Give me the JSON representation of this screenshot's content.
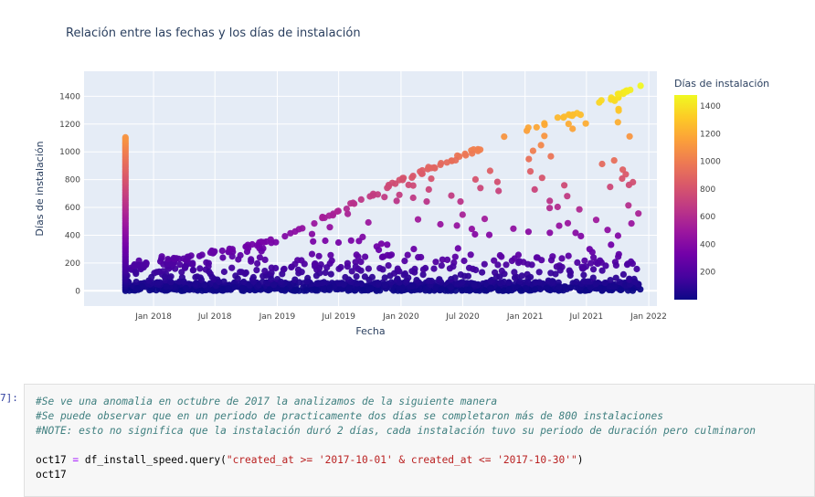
{
  "chart_data": {
    "type": "scatter",
    "title": "Relación entre las fechas y los días de instalación",
    "xlabel": "Fecha",
    "ylabel": "Días de instalación",
    "x_range": [
      "2017-06-10",
      "2022-01-25"
    ],
    "ylim": [
      -110,
      1580
    ],
    "x_ticks": [
      {
        "date": "2018-01-01",
        "label": "Jan 2018"
      },
      {
        "date": "2018-07-01",
        "label": "Jul 2018"
      },
      {
        "date": "2019-01-01",
        "label": "Jan 2019"
      },
      {
        "date": "2019-07-01",
        "label": "Jul 2019"
      },
      {
        "date": "2020-01-01",
        "label": "Jan 2020"
      },
      {
        "date": "2020-07-01",
        "label": "Jul 2020"
      },
      {
        "date": "2021-01-01",
        "label": "Jan 2021"
      },
      {
        "date": "2021-07-01",
        "label": "Jul 2021"
      },
      {
        "date": "2022-01-01",
        "label": "Jan 2022"
      }
    ],
    "y_ticks": [
      0,
      200,
      400,
      600,
      800,
      1000,
      1200,
      1400
    ],
    "grid": true,
    "colorbar": {
      "title": "Días de instalación",
      "range": [
        0,
        1480
      ],
      "ticks": [
        200,
        400,
        600,
        800,
        1000,
        1200,
        1400
      ],
      "colorscale": [
        "#0d0887",
        "#46039f",
        "#7201a8",
        "#9c179e",
        "#bd3786",
        "#d8576b",
        "#ed7953",
        "#fb9f3a",
        "#fdca26",
        "#f0f921"
      ]
    },
    "anomaly": {
      "date": "2017-10-10",
      "y_max": 1110
    },
    "upper_edge": [
      [
        "2017-10-15",
        170
      ],
      [
        "2018-01-01",
        225
      ],
      [
        "2018-07-01",
        295
      ],
      [
        "2019-01-01",
        380
      ],
      [
        "2019-07-01",
        590
      ],
      [
        "2020-01-01",
        810
      ],
      [
        "2020-07-01",
        990
      ],
      [
        "2021-01-01",
        1170
      ],
      [
        "2021-07-01",
        1330
      ],
      [
        "2021-12-08",
        1480
      ]
    ],
    "background_band": [
      0,
      60
    ],
    "note": ""
  },
  "colors": {
    "plot_bg": "#e5ecf6",
    "grid": "#ffffff",
    "text": "#2a3f5f",
    "tick_text": "#444444"
  },
  "notebook": {
    "prompt": "7]:",
    "code_lines": [
      {
        "kind": "comment",
        "text": "#Se ve una anomalia en octubre de 2017 la analizamos de la siguiente manera"
      },
      {
        "kind": "comment",
        "text": "#Se puede observar que en un periodo de practicamente dos días se completaron más de 800 instalaciones"
      },
      {
        "kind": "comment",
        "text": "#NOTE: esto no significa que la instalación duró 2 días, cada instalación tuvo su periodo de duración pero culminaron"
      },
      {
        "kind": "blank",
        "text": ""
      },
      {
        "kind": "code",
        "pre": "oct17 ",
        "op": "=",
        "mid": " df_install_speed.query(",
        "str": "\"created_at >= '2017-10-01' & created_at <= '2017-10-30'\"",
        "post": ")"
      },
      {
        "kind": "code",
        "pre": "oct17",
        "op": "",
        "mid": "",
        "str": "",
        "post": ""
      }
    ]
  }
}
